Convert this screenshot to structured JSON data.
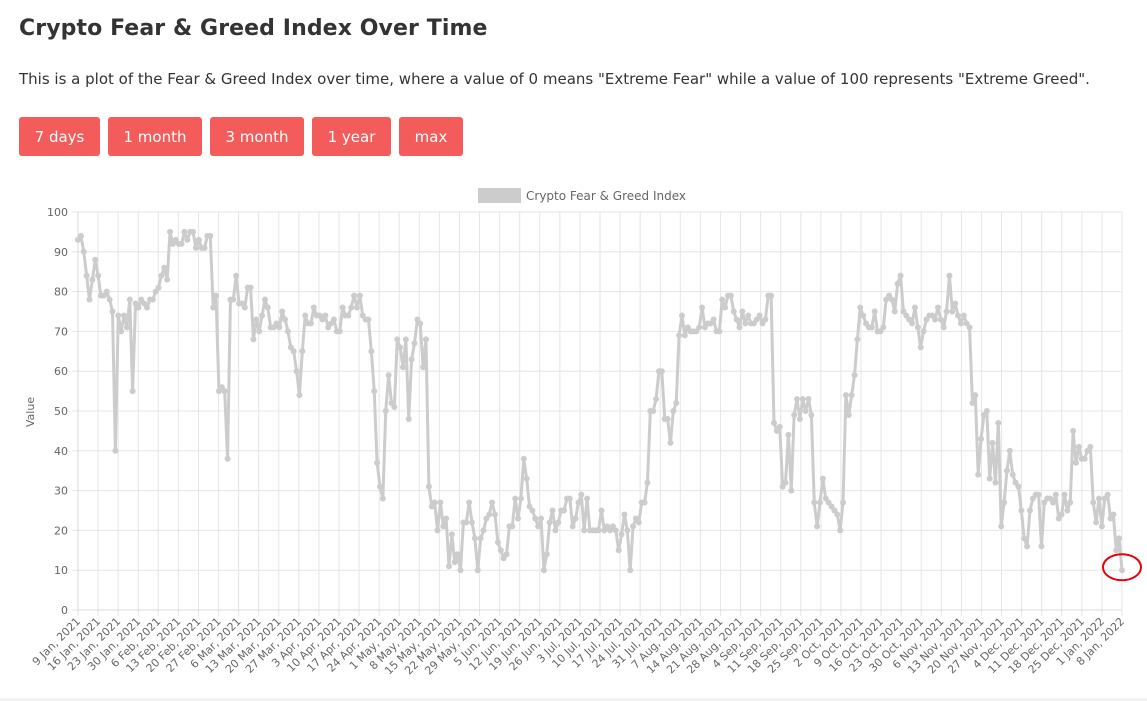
{
  "page": {
    "title": "Crypto Fear & Greed Index Over Time",
    "description": "This is a plot of the Fear & Greed Index over time, where a value of 0 means \"Extreme Fear\" while a value of 100 represents \"Extreme Greed\"."
  },
  "range_buttons": [
    {
      "label": "7 days"
    },
    {
      "label": "1 month"
    },
    {
      "label": "3 month"
    },
    {
      "label": "1 year"
    },
    {
      "label": "max"
    }
  ],
  "colors": {
    "button_bg": "#f45b5b",
    "button_text": "#ffffff",
    "series": "#cccccc",
    "highlight_circle": "#e8000b",
    "grid": "#e6e6e6"
  },
  "chart_data": {
    "type": "line",
    "title": "",
    "xlabel": "",
    "ylabel": "Value",
    "ylim": [
      0,
      100
    ],
    "yticks": [
      0,
      10,
      20,
      30,
      40,
      50,
      60,
      70,
      80,
      90,
      100
    ],
    "grid": true,
    "legend_position": "top",
    "x_tick_labels": [
      "9 Jan, 2021",
      "16 Jan, 2021",
      "23 Jan, 2021",
      "30 Jan, 2021",
      "6 Feb, 2021",
      "13 Feb, 2021",
      "20 Feb, 2021",
      "27 Feb, 2021",
      "6 Mar, 2021",
      "13 Mar, 2021",
      "20 Mar, 2021",
      "27 Mar, 2021",
      "3 Apr, 2021",
      "10 Apr, 2021",
      "17 Apr, 2021",
      "24 Apr, 2021",
      "1 May, 2021",
      "8 May, 2021",
      "15 May, 2021",
      "22 May, 2021",
      "29 May, 2021",
      "5 Jun, 2021",
      "12 Jun, 2021",
      "19 Jun, 2021",
      "26 Jun, 2021",
      "3 Jul, 2021",
      "10 Jul, 2021",
      "17 Jul, 2021",
      "24 Jul, 2021",
      "31 Jul, 2021",
      "7 Aug, 2021",
      "14 Aug, 2021",
      "21 Aug, 2021",
      "28 Aug, 2021",
      "4 Sep, 2021",
      "11 Sep, 2021",
      "18 Sep, 2021",
      "25 Sep, 2021",
      "2 Oct, 2021",
      "9 Oct, 2021",
      "16 Oct, 2021",
      "23 Oct, 2021",
      "30 Oct, 2021",
      "6 Nov, 2021",
      "13 Nov, 2021",
      "20 Nov, 2021",
      "27 Nov, 2021",
      "4 Dec, 2021",
      "11 Dec, 2021",
      "18 Dec, 2021",
      "25 Dec, 2021",
      "1 Jan, 2022",
      "8 Jan, 2022"
    ],
    "series": [
      {
        "name": "Crypto Fear & Greed Index",
        "color": "#cccccc",
        "values": [
          93,
          94,
          90,
          84,
          78,
          83,
          88,
          84,
          79,
          79,
          80,
          78,
          75,
          40,
          74,
          70,
          74,
          71,
          78,
          55,
          77,
          76,
          78,
          77,
          76,
          78,
          78,
          80,
          81,
          84,
          86,
          83,
          95,
          92,
          93,
          92,
          92,
          95,
          93,
          95,
          95,
          91,
          93,
          91,
          91,
          94,
          94,
          76,
          79,
          55,
          56,
          55,
          38,
          78,
          78,
          84,
          77,
          77,
          76,
          81,
          81,
          68,
          73,
          70,
          74,
          78,
          76,
          71,
          71,
          72,
          71,
          75,
          73,
          70,
          66,
          65,
          60,
          54,
          65,
          74,
          72,
          72,
          76,
          74,
          74,
          73,
          74,
          71,
          72,
          73,
          70,
          70,
          76,
          74,
          74,
          76,
          79,
          76,
          79,
          74,
          73,
          73,
          65,
          55,
          37,
          31,
          28,
          50,
          59,
          52,
          51,
          68,
          66,
          61,
          68,
          48,
          63,
          67,
          73,
          72,
          61,
          68,
          31,
          26,
          27,
          20,
          27,
          21,
          23,
          11,
          19,
          12,
          14,
          10,
          22,
          22,
          27,
          22,
          18,
          10,
          18,
          20,
          23,
          24,
          27,
          24,
          17,
          15,
          13,
          14,
          21,
          21,
          28,
          23,
          28,
          38,
          33,
          26,
          25,
          23,
          21,
          23,
          10,
          14,
          22,
          25,
          20,
          22,
          25,
          25,
          28,
          28,
          21,
          23,
          27,
          29,
          20,
          28,
          20,
          20,
          20,
          20,
          25,
          20,
          21,
          20,
          21,
          20,
          15,
          19,
          24,
          20,
          10,
          21,
          23,
          22,
          27,
          27,
          32,
          50,
          50,
          53,
          60,
          60,
          48,
          48,
          42,
          50,
          52,
          69,
          74,
          69,
          71,
          70,
          70,
          70,
          71,
          76,
          71,
          72,
          72,
          73,
          70,
          70,
          78,
          76,
          79,
          79,
          75,
          73,
          71,
          75,
          72,
          74,
          72,
          72,
          73,
          74,
          72,
          73,
          79,
          79,
          47,
          45,
          46,
          31,
          32,
          44,
          30,
          49,
          53,
          48,
          53,
          50,
          53,
          49,
          27,
          21,
          27,
          33,
          28,
          27,
          26,
          25,
          24,
          20,
          27,
          54,
          49,
          54,
          59,
          68,
          76,
          74,
          72,
          71,
          71,
          75,
          70,
          70,
          71,
          78,
          79,
          78,
          75,
          82,
          84,
          75,
          74,
          73,
          72,
          76,
          71,
          66,
          70,
          73,
          74,
          74,
          73,
          76,
          73,
          71,
          75,
          84,
          75,
          77,
          74,
          72,
          74,
          72,
          71,
          52,
          54,
          34,
          43,
          49,
          50,
          33,
          42,
          32,
          47,
          21,
          27,
          35,
          40,
          34,
          32,
          31,
          25,
          18,
          16,
          25,
          28,
          29,
          29,
          16,
          27,
          28,
          28,
          27,
          29,
          23,
          24,
          29,
          25,
          27,
          45,
          37,
          41,
          38,
          38,
          40,
          41,
          27,
          22,
          28,
          21,
          28,
          29,
          23,
          24,
          15,
          18,
          10
        ]
      }
    ]
  }
}
